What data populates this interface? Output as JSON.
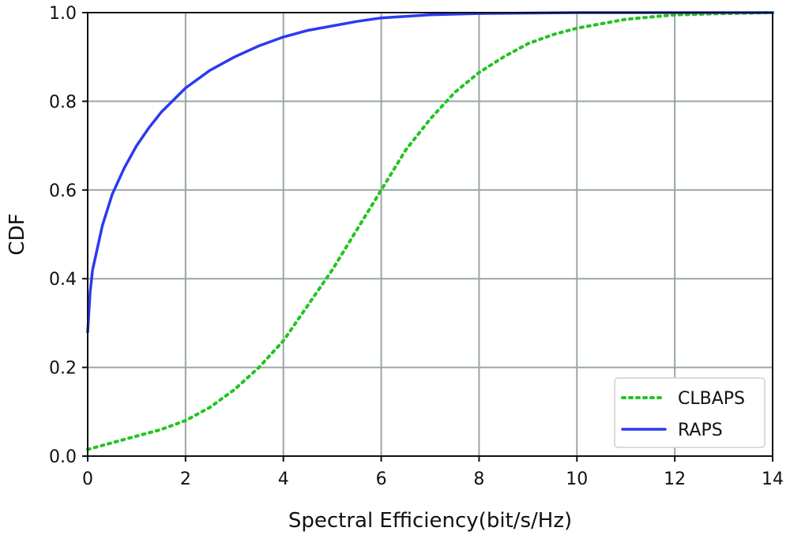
{
  "chart_data": {
    "type": "line",
    "title": "",
    "xlabel": "Spectral Efficiency(bit/s/Hz)",
    "ylabel": "CDF",
    "xlim": [
      0,
      14
    ],
    "ylim": [
      0,
      1
    ],
    "xticks": [
      "0",
      "2",
      "4",
      "6",
      "8",
      "10",
      "12",
      "14"
    ],
    "yticks": [
      "0.0",
      "0.2",
      "0.4",
      "0.6",
      "0.8",
      "1.0"
    ],
    "grid": true,
    "legend_position": "lower-right",
    "series": [
      {
        "name": "CLBAPS",
        "style": "dotted",
        "color": "#22c422",
        "x": [
          0,
          0.5,
          1,
          1.5,
          2,
          2.5,
          3,
          3.5,
          4,
          4.5,
          5,
          5.5,
          6,
          6.5,
          7,
          7.5,
          8,
          8.5,
          9,
          9.5,
          10,
          10.5,
          11,
          11.5,
          12,
          13,
          14
        ],
        "y": [
          0.015,
          0.03,
          0.045,
          0.06,
          0.08,
          0.11,
          0.15,
          0.2,
          0.26,
          0.34,
          0.42,
          0.51,
          0.6,
          0.69,
          0.76,
          0.82,
          0.865,
          0.9,
          0.93,
          0.95,
          0.965,
          0.975,
          0.985,
          0.99,
          0.995,
          0.998,
          1.0
        ]
      },
      {
        "name": "RAPS",
        "style": "solid",
        "color": "#2a3bf0",
        "x": [
          0,
          0.05,
          0.1,
          0.2,
          0.3,
          0.5,
          0.75,
          1,
          1.25,
          1.5,
          2,
          2.5,
          3,
          3.5,
          4,
          4.5,
          5,
          5.5,
          6,
          7,
          8,
          10,
          14
        ],
        "y": [
          0.28,
          0.37,
          0.42,
          0.47,
          0.52,
          0.59,
          0.65,
          0.7,
          0.74,
          0.775,
          0.83,
          0.87,
          0.9,
          0.925,
          0.945,
          0.96,
          0.97,
          0.98,
          0.988,
          0.995,
          0.998,
          1.0,
          1.0
        ]
      }
    ]
  }
}
